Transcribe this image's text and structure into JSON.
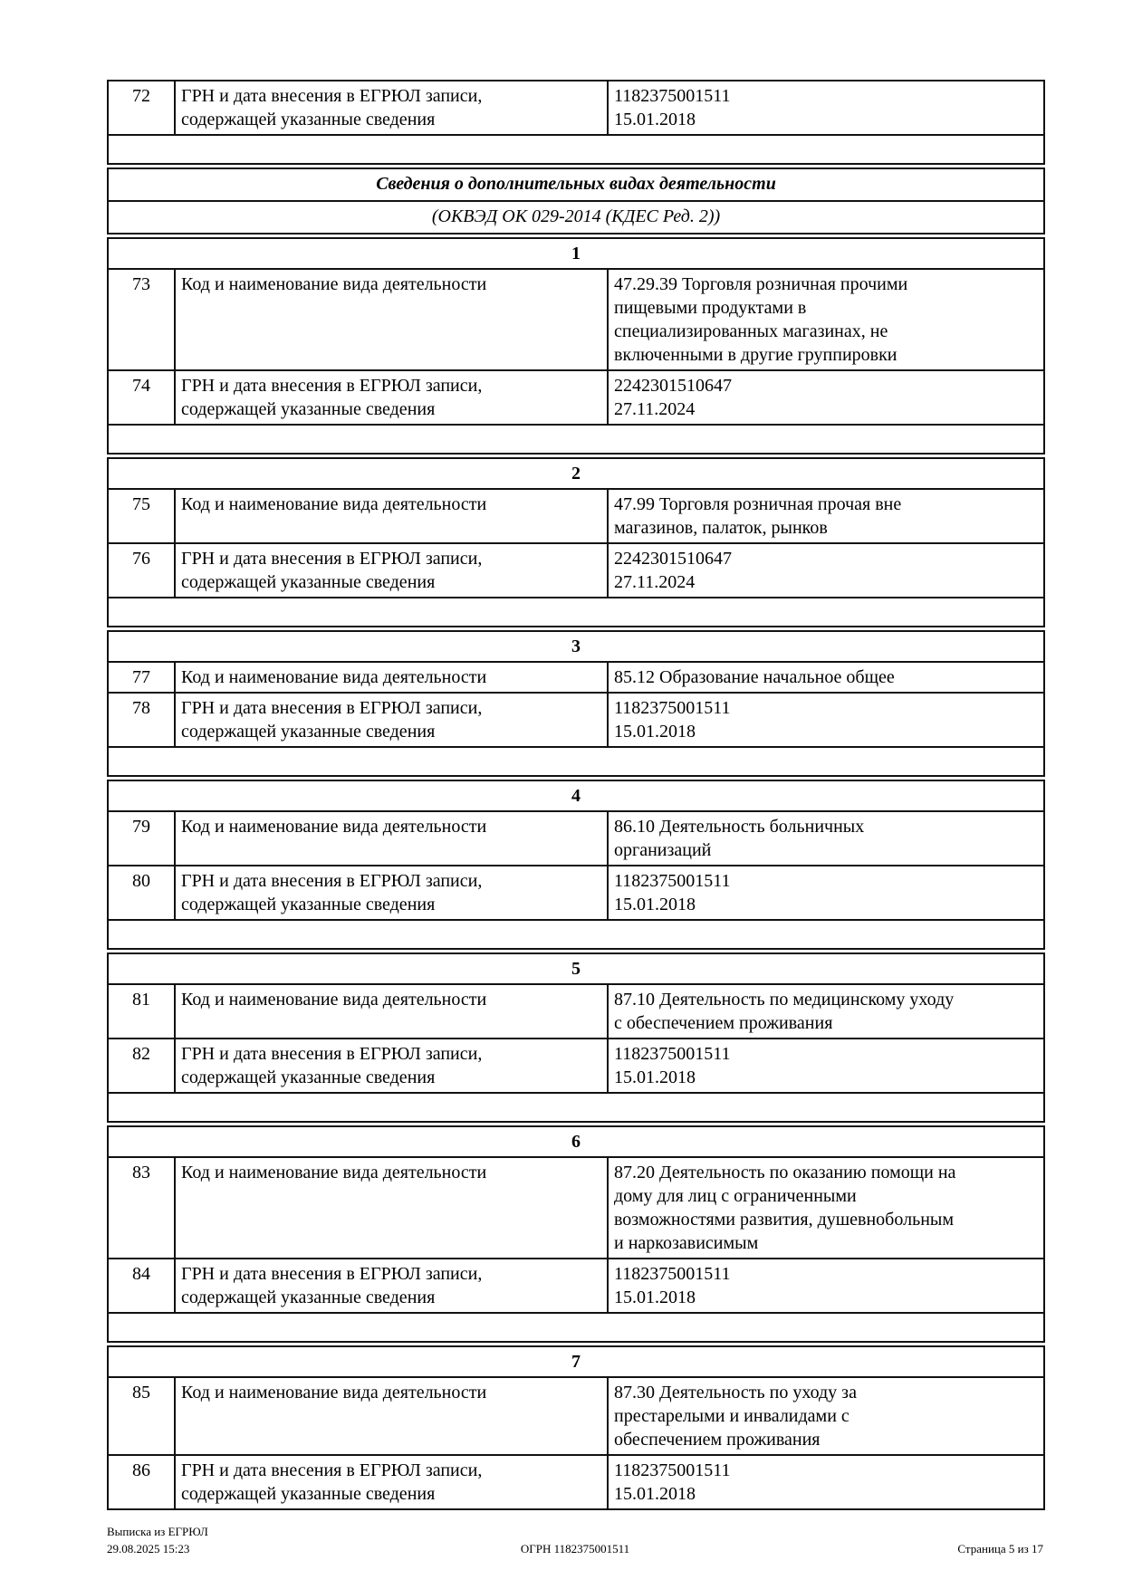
{
  "page": {
    "top_group": {
      "row": {
        "num": "72",
        "label": "ГРН и дата внесения в ЕГРЮЛ записи,\nсодержащей указанные сведения",
        "value": "1182375001511\n15.01.2018"
      }
    },
    "section": {
      "title": "Сведения о дополнительных видах деятельности",
      "subtitle": "(ОКВЭД ОК 029-2014 (КДЕС Ред. 2))"
    },
    "groups": [
      {
        "index": "1",
        "rows": [
          {
            "num": "73",
            "label": "Код и наименование вида деятельности",
            "value": "47.29.39 Торговля розничная прочими\nпищевыми продуктами в\nспециализированных магазинах, не\nвключенными в другие группировки"
          },
          {
            "num": "74",
            "label": "ГРН и дата внесения в ЕГРЮЛ записи,\nсодержащей указанные сведения",
            "value": "2242301510647\n27.11.2024"
          }
        ]
      },
      {
        "index": "2",
        "rows": [
          {
            "num": "75",
            "label": "Код и наименование вида деятельности",
            "value": "47.99 Торговля розничная прочая вне\nмагазинов, палаток, рынков"
          },
          {
            "num": "76",
            "label": "ГРН и дата внесения в ЕГРЮЛ записи,\nсодержащей указанные сведения",
            "value": "2242301510647\n27.11.2024"
          }
        ]
      },
      {
        "index": "3",
        "rows": [
          {
            "num": "77",
            "label": "Код и наименование вида деятельности",
            "value": "85.12 Образование начальное общее"
          },
          {
            "num": "78",
            "label": "ГРН и дата внесения в ЕГРЮЛ записи,\nсодержащей указанные сведения",
            "value": "1182375001511\n15.01.2018"
          }
        ]
      },
      {
        "index": "4",
        "rows": [
          {
            "num": "79",
            "label": "Код и наименование вида деятельности",
            "value": "86.10 Деятельность больничных\nорганизаций"
          },
          {
            "num": "80",
            "label": "ГРН и дата внесения в ЕГРЮЛ записи,\nсодержащей указанные сведения",
            "value": "1182375001511\n15.01.2018"
          }
        ]
      },
      {
        "index": "5",
        "rows": [
          {
            "num": "81",
            "label": "Код и наименование вида деятельности",
            "value": "87.10 Деятельность по медицинскому уходу\nс обеспечением проживания"
          },
          {
            "num": "82",
            "label": "ГРН и дата внесения в ЕГРЮЛ записи,\nсодержащей указанные сведения",
            "value": "1182375001511\n15.01.2018"
          }
        ]
      },
      {
        "index": "6",
        "rows": [
          {
            "num": "83",
            "label": "Код и наименование вида деятельности",
            "value": "87.20 Деятельность по оказанию помощи на\nдому для лиц с ограниченными\nвозможностями развития, душевнобольным\nи наркозависимым"
          },
          {
            "num": "84",
            "label": "ГРН и дата внесения в ЕГРЮЛ записи,\nсодержащей указанные сведения",
            "value": "1182375001511\n15.01.2018"
          }
        ]
      },
      {
        "index": "7",
        "rows": [
          {
            "num": "85",
            "label": "Код и наименование вида деятельности",
            "value": "87.30 Деятельность по уходу за\nпрестарелыми и инвалидами с\nобеспечением проживания"
          },
          {
            "num": "86",
            "label": "ГРН и дата внесения в ЕГРЮЛ записи,\nсодержащей указанные сведения",
            "value": "1182375001511\n15.01.2018"
          }
        ]
      }
    ],
    "footer": {
      "doc_type": "Выписка из ЕГРЮЛ",
      "generated": "29.08.2025 15:23",
      "ogrn": "ОГРН 1182375001511",
      "page_info": "Страница 5 из 17"
    }
  }
}
